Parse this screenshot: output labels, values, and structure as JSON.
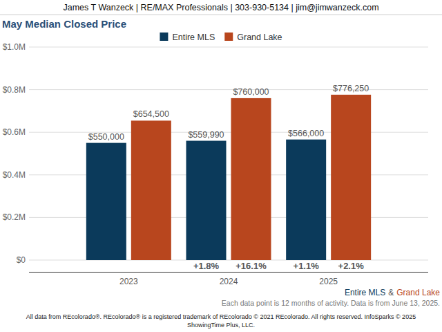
{
  "chart_data": {
    "type": "bar",
    "header": "James T Wanzeck | RE/MAX Professionals | 303-930-5134 | jim@jimwanzeck.com",
    "title": "May Median Closed Price",
    "categories": [
      "2023",
      "2024",
      "2025"
    ],
    "series": [
      {
        "name": "Entire MLS",
        "color": "#0b3a5b",
        "values": [
          550000,
          559990,
          566000
        ],
        "value_labels": [
          "$550,000",
          "$559,990",
          "$566,000"
        ],
        "changes": [
          null,
          1.8,
          1.1
        ],
        "change_labels": [
          null,
          "+1.8%",
          "+1.1%"
        ]
      },
      {
        "name": "Grand Lake",
        "color": "#b8461e",
        "values": [
          654500,
          760000,
          776250
        ],
        "value_labels": [
          "$654,500",
          "$760,000",
          "$776,250"
        ],
        "changes": [
          null,
          16.1,
          2.1
        ],
        "change_labels": [
          null,
          "+16.1%",
          "+2.1%"
        ]
      }
    ],
    "ylim": [
      0,
      1000000
    ],
    "yticks": [
      {
        "value": 0,
        "label": "$0"
      },
      {
        "value": 200000,
        "label": "$0.2M"
      },
      {
        "value": 400000,
        "label": "$0.4M"
      },
      {
        "value": 600000,
        "label": "$0.6M"
      },
      {
        "value": 800000,
        "label": "$0.8M"
      },
      {
        "value": 1000000,
        "label": "$1.0M"
      }
    ],
    "grid": true,
    "data_labels": true,
    "legend": "top",
    "series_joiner": "&",
    "notes": [
      "Each data point is 12 months of activity. Data is from June 13, 2025."
    ],
    "footer": [
      "All data from REcolorado®. REcolorado® is a registered trademark of REcolorado © 2021 REcolorado. All rights reserved. InfoSparks © 2025",
      "ShowingTime Plus, LLC."
    ]
  }
}
